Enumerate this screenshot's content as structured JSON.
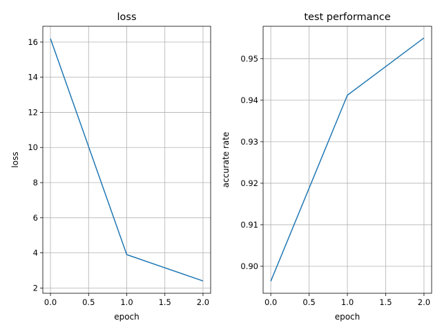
{
  "chart_data": [
    {
      "type": "line",
      "title": "loss",
      "xlabel": "epoch",
      "ylabel": "loss",
      "x": [
        0,
        1,
        2
      ],
      "series": [
        {
          "values": [
            16.2,
            3.9,
            2.4
          ]
        }
      ],
      "xlim": [
        -0.1,
        2.1
      ],
      "ylim": [
        1.7,
        16.9
      ],
      "xticks": [
        0.0,
        0.5,
        1.0,
        1.5,
        2.0
      ],
      "xtick_labels": [
        "0.0",
        "0.5",
        "1.0",
        "1.5",
        "2.0"
      ],
      "yticks": [
        2,
        4,
        6,
        8,
        10,
        12,
        14,
        16
      ],
      "ytick_labels": [
        "2",
        "4",
        "6",
        "8",
        "10",
        "12",
        "14",
        "16"
      ],
      "grid": true,
      "color": "#1f77b4"
    },
    {
      "type": "line",
      "title": "test performance",
      "xlabel": "epoch",
      "ylabel": "accurate rate",
      "x": [
        0,
        1,
        2
      ],
      "series": [
        {
          "values": [
            0.8964,
            0.9412,
            0.955
          ]
        }
      ],
      "xlim": [
        -0.1,
        2.1
      ],
      "ylim": [
        0.8935,
        0.9578
      ],
      "xticks": [
        0.0,
        0.5,
        1.0,
        1.5,
        2.0
      ],
      "xtick_labels": [
        "0.0",
        "0.5",
        "1.0",
        "1.5",
        "2.0"
      ],
      "yticks": [
        0.9,
        0.91,
        0.92,
        0.93,
        0.94,
        0.95
      ],
      "ytick_labels": [
        "0.90",
        "0.91",
        "0.92",
        "0.93",
        "0.94",
        "0.95"
      ],
      "grid": true,
      "color": "#1f77b4"
    }
  ]
}
